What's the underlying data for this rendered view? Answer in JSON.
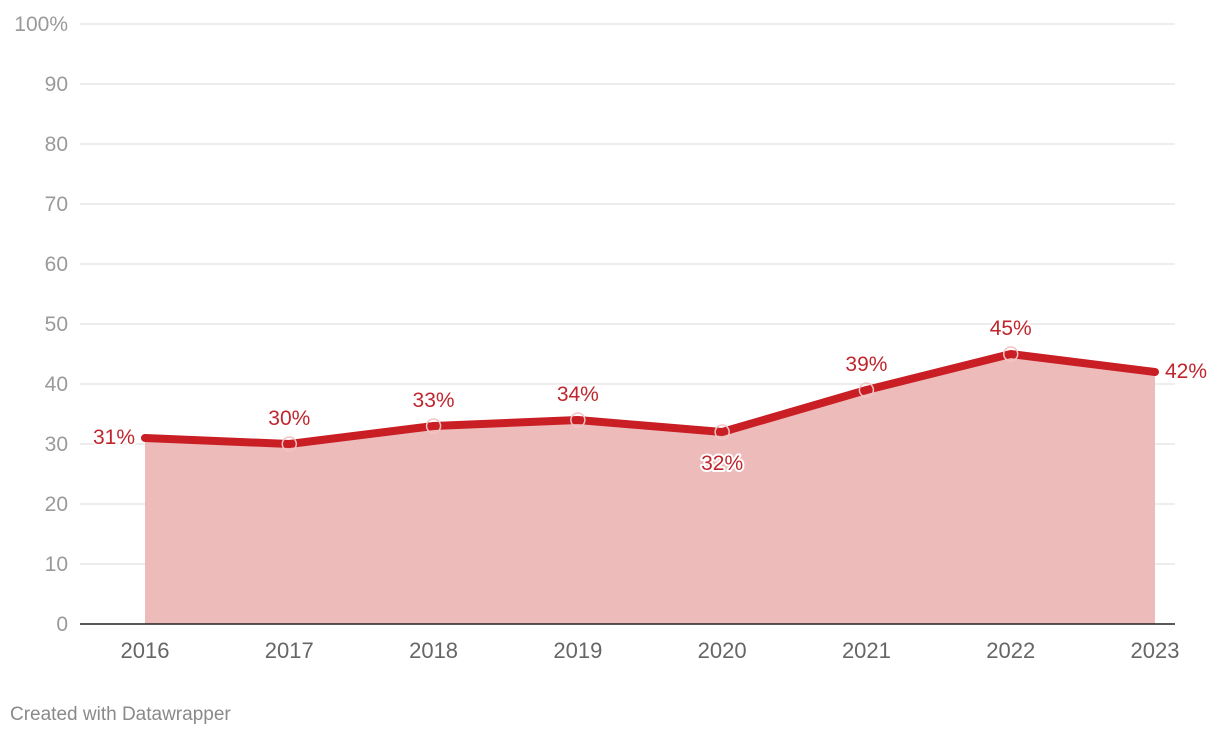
{
  "footer": {
    "credit": "Created with Datawrapper"
  },
  "colors": {
    "line": "#c81e24",
    "area": "#eebbbb",
    "label": "#c0262d"
  },
  "chart_data": {
    "type": "area",
    "x": [
      "2016",
      "2017",
      "2018",
      "2019",
      "2020",
      "2021",
      "2022",
      "2023"
    ],
    "series": [
      {
        "values": [
          31,
          30,
          33,
          34,
          32,
          39,
          45,
          42
        ],
        "labels": [
          "31%",
          "30%",
          "33%",
          "34%",
          "32%",
          "39%",
          "45%",
          "42%"
        ]
      }
    ],
    "y_ticks": [
      0,
      10,
      20,
      30,
      40,
      50,
      60,
      70,
      80,
      90,
      100
    ],
    "y_tick_labels": [
      "0",
      "10",
      "20",
      "30",
      "40",
      "50",
      "60",
      "70",
      "80",
      "90",
      "100%"
    ],
    "ylim": [
      0,
      100
    ],
    "grid": true,
    "title": "",
    "xlabel": "",
    "ylabel": ""
  }
}
